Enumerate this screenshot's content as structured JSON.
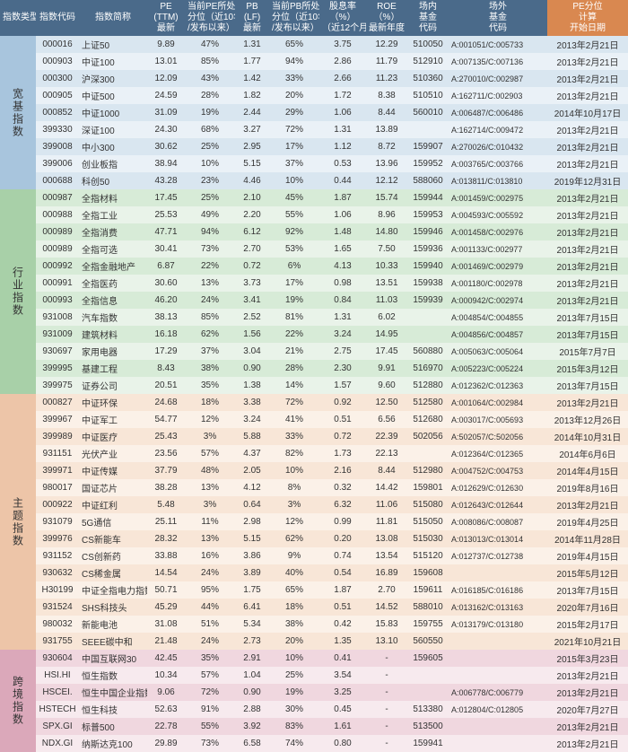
{
  "headers": {
    "category": "指数类型",
    "code": "指数代码",
    "name": "指数简称",
    "pe": "PE\n(TTM)\n最新",
    "pe_pct": "当前PE所处\n分位（近10年\n/发布以来）",
    "pb": "PB\n(LF)\n最新",
    "pb_pct": "当前PB所处\n分位（近10年\n/发布以来）",
    "div": "股息率\n（%）\n（近12个月）",
    "roe": "ROE\n（%）\n最新年度",
    "fund_in": "场内\n基金\n代码",
    "fund_out": "场外\n基金\n代码",
    "pe_start": "PE分位\n计算\n开始日期"
  },
  "col_widths": {
    "category": 40,
    "code": 48,
    "name": 76,
    "pe": 42,
    "pe_pct": 56,
    "pb": 38,
    "pb_pct": 56,
    "div": 52,
    "roe": 46,
    "fund_in": 46,
    "fund_out": 110,
    "pe_start": 90
  },
  "colors": {
    "header_main": "#4a6a8a",
    "header_accent": "#d98850",
    "category_bg": [
      "#a8c5dd",
      "#a8d0a8",
      "#edc5a8",
      "#dba8ba"
    ],
    "row_even": [
      "#d9e6f0",
      "#d7ebd7",
      "#f8e6d7",
      "#f0d7df"
    ],
    "row_odd": [
      "#eaf1f7",
      "#e9f3e9",
      "#fbf1e8",
      "#f7eaee"
    ]
  },
  "groups": [
    {
      "name": "宽基指数",
      "rows": [
        [
          "000016",
          "上证50",
          "9.89",
          "47%",
          "1.31",
          "65%",
          "3.75",
          "12.29",
          "510050",
          "A:001051/C:005733",
          "2013年2月21日"
        ],
        [
          "000903",
          "中证100",
          "13.01",
          "85%",
          "1.77",
          "94%",
          "2.86",
          "11.79",
          "512910",
          "A:007135/C:007136",
          "2013年2月21日"
        ],
        [
          "000300",
          "沪深300",
          "12.09",
          "43%",
          "1.42",
          "33%",
          "2.66",
          "11.23",
          "510360",
          "A:270010/C:002987",
          "2013年2月21日"
        ],
        [
          "000905",
          "中证500",
          "24.59",
          "28%",
          "1.82",
          "20%",
          "1.72",
          "8.38",
          "510510",
          "A:162711/C:002903",
          "2013年2月21日"
        ],
        [
          "000852",
          "中证1000",
          "31.09",
          "19%",
          "2.44",
          "29%",
          "1.06",
          "8.44",
          "560010",
          "A:006487/C:006486",
          "2014年10月17日"
        ],
        [
          "399330",
          "深证100",
          "24.30",
          "68%",
          "3.27",
          "72%",
          "1.31",
          "13.89",
          "",
          "A:162714/C:009472",
          "2013年2月21日"
        ],
        [
          "399008",
          "中小300",
          "30.62",
          "25%",
          "2.95",
          "17%",
          "1.12",
          "8.72",
          "159907",
          "A:270026/C:010432",
          "2013年2月21日"
        ],
        [
          "399006",
          "创业板指",
          "38.94",
          "10%",
          "5.15",
          "37%",
          "0.53",
          "13.96",
          "159952",
          "A:003765/C:003766",
          "2013年2月21日"
        ],
        [
          "000688",
          "科创50",
          "43.28",
          "23%",
          "4.46",
          "10%",
          "0.44",
          "12.12",
          "588060",
          "A:013811/C:013810",
          "2019年12月31日"
        ]
      ]
    },
    {
      "name": "行业指数",
      "rows": [
        [
          "000987",
          "全指材料",
          "17.45",
          "25%",
          "2.10",
          "45%",
          "1.87",
          "15.74",
          "159944",
          "A:001459/C:002975",
          "2013年2月21日"
        ],
        [
          "000988",
          "全指工业",
          "25.53",
          "49%",
          "2.20",
          "55%",
          "1.06",
          "8.96",
          "159953",
          "A:004593/C:005592",
          "2013年2月21日"
        ],
        [
          "000989",
          "全指消费",
          "47.71",
          "94%",
          "6.12",
          "92%",
          "1.48",
          "14.80",
          "159946",
          "A:001458/C:002976",
          "2013年2月21日"
        ],
        [
          "000989",
          "全指可选",
          "30.41",
          "73%",
          "2.70",
          "53%",
          "1.65",
          "7.50",
          "159936",
          "A:001133/C:002977",
          "2013年2月21日"
        ],
        [
          "000992",
          "全指金融地产",
          "6.87",
          "22%",
          "0.72",
          "6%",
          "4.13",
          "10.33",
          "159940",
          "A:001469/C:002979",
          "2013年2月21日"
        ],
        [
          "000991",
          "全指医药",
          "30.60",
          "13%",
          "3.73",
          "17%",
          "0.98",
          "13.51",
          "159938",
          "A:001180/C:002978",
          "2013年2月21日"
        ],
        [
          "000993",
          "全指信息",
          "46.20",
          "24%",
          "3.41",
          "19%",
          "0.84",
          "11.03",
          "159939",
          "A:000942/C:002974",
          "2013年2月21日"
        ],
        [
          "931008",
          "汽车指数",
          "38.13",
          "85%",
          "2.52",
          "81%",
          "1.31",
          "6.02",
          "",
          "A:004854/C:004855",
          "2013年7月15日"
        ],
        [
          "931009",
          "建筑材料",
          "16.18",
          "62%",
          "1.56",
          "22%",
          "3.24",
          "14.95",
          "",
          "A:004856/C:004857",
          "2013年7月15日"
        ],
        [
          "930697",
          "家用电器",
          "17.29",
          "37%",
          "3.04",
          "21%",
          "2.75",
          "17.45",
          "560880",
          "A:005063/C:005064",
          "2015年7月7日"
        ],
        [
          "399995",
          "基建工程",
          "8.43",
          "38%",
          "0.90",
          "28%",
          "2.30",
          "9.91",
          "516970",
          "A:005223/C:005224",
          "2015年3月12日"
        ],
        [
          "399975",
          "证券公司",
          "20.51",
          "35%",
          "1.38",
          "14%",
          "1.57",
          "9.60",
          "512880",
          "A:012362/C:012363",
          "2013年7月15日"
        ]
      ]
    },
    {
      "name": "主题指数",
      "rows": [
        [
          "000827",
          "中证环保",
          "24.68",
          "18%",
          "3.38",
          "72%",
          "0.92",
          "12.50",
          "512580",
          "A:001064/C:002984",
          "2013年2月21日"
        ],
        [
          "399967",
          "中证军工",
          "54.77",
          "12%",
          "3.24",
          "41%",
          "0.51",
          "6.56",
          "512680",
          "A:003017/C:005693",
          "2013年12月26日"
        ],
        [
          "399989",
          "中证医疗",
          "25.43",
          "3%",
          "5.88",
          "33%",
          "0.72",
          "22.39",
          "502056",
          "A:502057/C:502056",
          "2014年10月31日"
        ],
        [
          "931151",
          "光伏产业",
          "23.56",
          "57%",
          "4.37",
          "82%",
          "1.73",
          "22.13",
          "",
          "A:012364/C:012365",
          "2014年6月6日"
        ],
        [
          "399971",
          "中证传媒",
          "37.79",
          "48%",
          "2.05",
          "10%",
          "2.16",
          "8.44",
          "512980",
          "A:004752/C:004753",
          "2014年4月15日"
        ],
        [
          "980017",
          "国证芯片",
          "38.28",
          "13%",
          "4.12",
          "8%",
          "0.32",
          "14.42",
          "159801",
          "A:012629/C:012630",
          "2019年8月16日"
        ],
        [
          "000922",
          "中证红利",
          "5.48",
          "3%",
          "0.64",
          "3%",
          "6.32",
          "11.06",
          "515080",
          "A:012643/C:012644",
          "2013年2月21日"
        ],
        [
          "931079",
          "5G通信",
          "25.11",
          "11%",
          "2.98",
          "12%",
          "0.99",
          "11.81",
          "515050",
          "A:008086/C:008087",
          "2019年4月25日"
        ],
        [
          "399976",
          "CS新能车",
          "28.32",
          "13%",
          "5.15",
          "62%",
          "0.20",
          "13.08",
          "515030",
          "A:013013/C:013014",
          "2014年11月28日"
        ],
        [
          "931152",
          "CS创新药",
          "33.88",
          "16%",
          "3.86",
          "9%",
          "0.74",
          "13.54",
          "515120",
          "A:012737/C:012738",
          "2019年4月15日"
        ],
        [
          "930632",
          "CS稀金属",
          "14.54",
          "24%",
          "3.89",
          "40%",
          "0.54",
          "16.89",
          "159608",
          "",
          "2015年5月12日"
        ],
        [
          "H30199",
          "中证全指电力指数",
          "50.71",
          "95%",
          "1.75",
          "65%",
          "1.87",
          "2.70",
          "159611",
          "A:016185/C:016186",
          "2013年7月15日"
        ],
        [
          "931524",
          "SHS科技头",
          "45.29",
          "44%",
          "6.41",
          "18%",
          "0.51",
          "14.52",
          "588010",
          "A:013162/C:013163",
          "2020年7月16日"
        ],
        [
          "980032",
          "新能电池",
          "31.08",
          "51%",
          "5.34",
          "38%",
          "0.42",
          "15.83",
          "159755",
          "A:013179/C:013180",
          "2015年2月17日"
        ],
        [
          "931755",
          "SEEE碳中和",
          "21.48",
          "24%",
          "2.73",
          "20%",
          "1.35",
          "13.10",
          "560550",
          "",
          "2021年10月21日"
        ]
      ]
    },
    {
      "name": "跨境指数",
      "rows": [
        [
          "930604",
          "中国互联网30",
          "42.45",
          "35%",
          "2.91",
          "10%",
          "0.41",
          "-",
          "159605",
          "",
          "2015年3月23日"
        ],
        [
          "HSI.HI",
          "恒生指数",
          "10.34",
          "57%",
          "1.04",
          "25%",
          "3.54",
          "-",
          "",
          "",
          "2013年2月21日"
        ],
        [
          "HSCEI.",
          "恒生中国企业指数",
          "9.06",
          "72%",
          "0.90",
          "19%",
          "3.25",
          "-",
          "",
          "A:006778/C:006779",
          "2013年2月21日"
        ],
        [
          "HSTECH",
          "恒生科技",
          "52.63",
          "91%",
          "2.88",
          "30%",
          "0.45",
          "-",
          "513380",
          "A:012804/C:012805",
          "2020年7月27日"
        ],
        [
          "SPX.GI",
          "标普500",
          "22.78",
          "55%",
          "3.92",
          "83%",
          "1.61",
          "-",
          "513500",
          "",
          "2013年2月21日"
        ],
        [
          "NDX.GI",
          "纳斯达克100",
          "29.89",
          "73%",
          "6.58",
          "74%",
          "0.80",
          "-",
          "159941",
          "",
          "2013年2月21日"
        ]
      ]
    }
  ]
}
